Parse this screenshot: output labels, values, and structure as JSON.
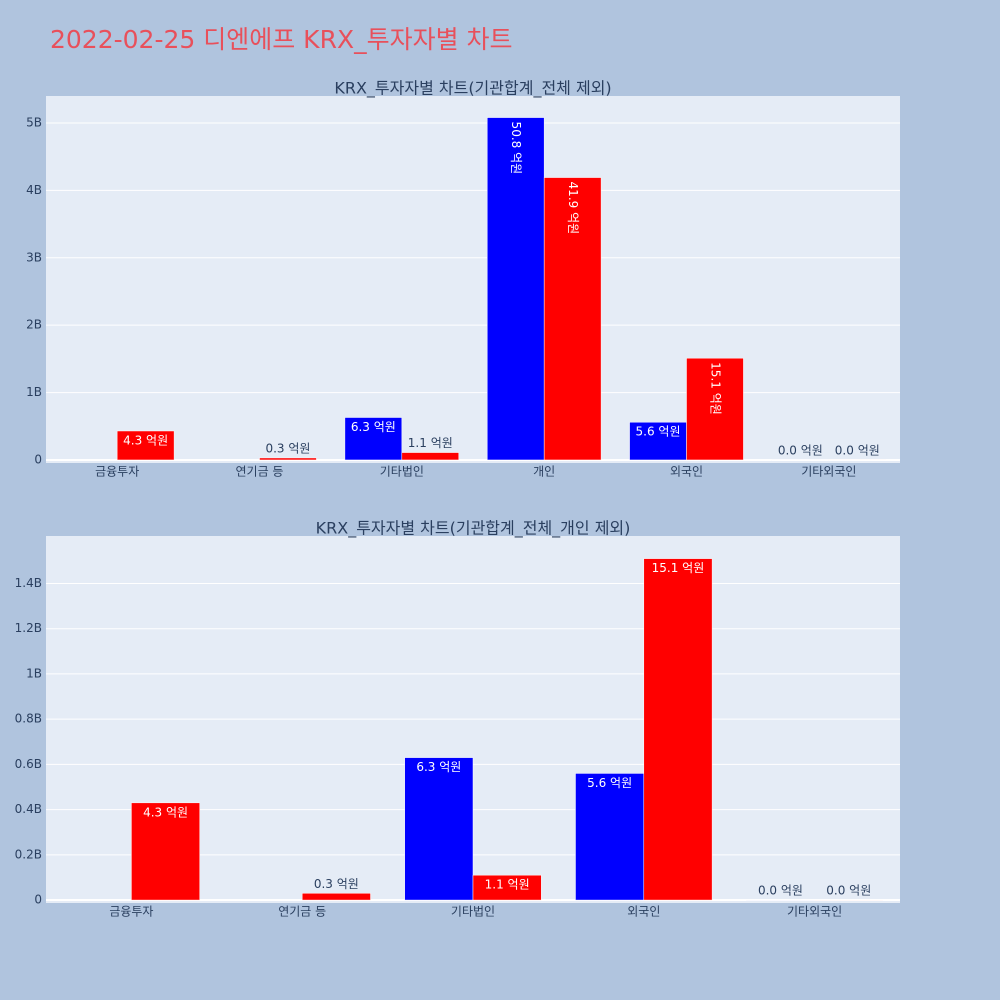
{
  "title": "2022-02-25 디엔에프 KRX_투자자별 차트",
  "chart_data": [
    {
      "type": "bar",
      "title": "KRX_투자자별 차트(기관합계_전체 제외)",
      "categories": [
        "금융투자",
        "연기금 등",
        "기타법인",
        "개인",
        "외국인",
        "기타외국인"
      ],
      "series": [
        {
          "color": "#0000ff",
          "values": [
            null,
            null,
            630000000,
            5080000000,
            560000000,
            0
          ],
          "value_labels": [
            null,
            null,
            "6.3 억원",
            "50.8 억원",
            "5.6 억원",
            "0.0 억원"
          ]
        },
        {
          "color": "#ff0000",
          "values": [
            430000000,
            30000000,
            110000000,
            4190000000,
            1510000000,
            0
          ],
          "value_labels": [
            "4.3 억원",
            "0.3 억원",
            "1.1 억원",
            "41.9 억원",
            "15.1 억원",
            "0.0 억원"
          ]
        }
      ],
      "ylim": [
        -45000000,
        5400000000
      ],
      "yticks": [
        0,
        {
          "value": 1000000000,
          "label": "1B"
        },
        {
          "value": 2000000000,
          "label": "2B"
        },
        {
          "value": 3000000000,
          "label": "3B"
        },
        {
          "value": 4000000000,
          "label": "4B"
        },
        {
          "value": 5000000000,
          "label": "5B"
        }
      ],
      "grid": true
    },
    {
      "type": "bar",
      "title": "KRX_투자자별 차트(기관합계_전체_개인 제외)",
      "categories": [
        "금융투자",
        "연기금 등",
        "기타법인",
        "외국인",
        "기타외국인"
      ],
      "series": [
        {
          "color": "#0000ff",
          "values": [
            null,
            null,
            630000000,
            560000000,
            0
          ],
          "value_labels": [
            null,
            null,
            "6.3 억원",
            "5.6 억원",
            "0.0 억원"
          ]
        },
        {
          "color": "#ff0000",
          "values": [
            430000000,
            30000000,
            110000000,
            1510000000,
            0
          ],
          "value_labels": [
            "4.3 억원",
            "0.3 억원",
            "1.1 억원",
            "15.1 억원",
            "0.0 억원"
          ]
        }
      ],
      "ylim": [
        -13000000,
        1610000000
      ],
      "yticks": [
        0,
        {
          "value": 200000000,
          "label": "0.2B"
        },
        {
          "value": 400000000,
          "label": "0.4B"
        },
        {
          "value": 600000000,
          "label": "0.6B"
        },
        {
          "value": 800000000,
          "label": "0.8B"
        },
        {
          "value": 1000000000,
          "label": "1B"
        },
        {
          "value": 1200000000,
          "label": "1.2B"
        },
        {
          "value": 1400000000,
          "label": "1.4B"
        }
      ],
      "grid": true
    }
  ]
}
